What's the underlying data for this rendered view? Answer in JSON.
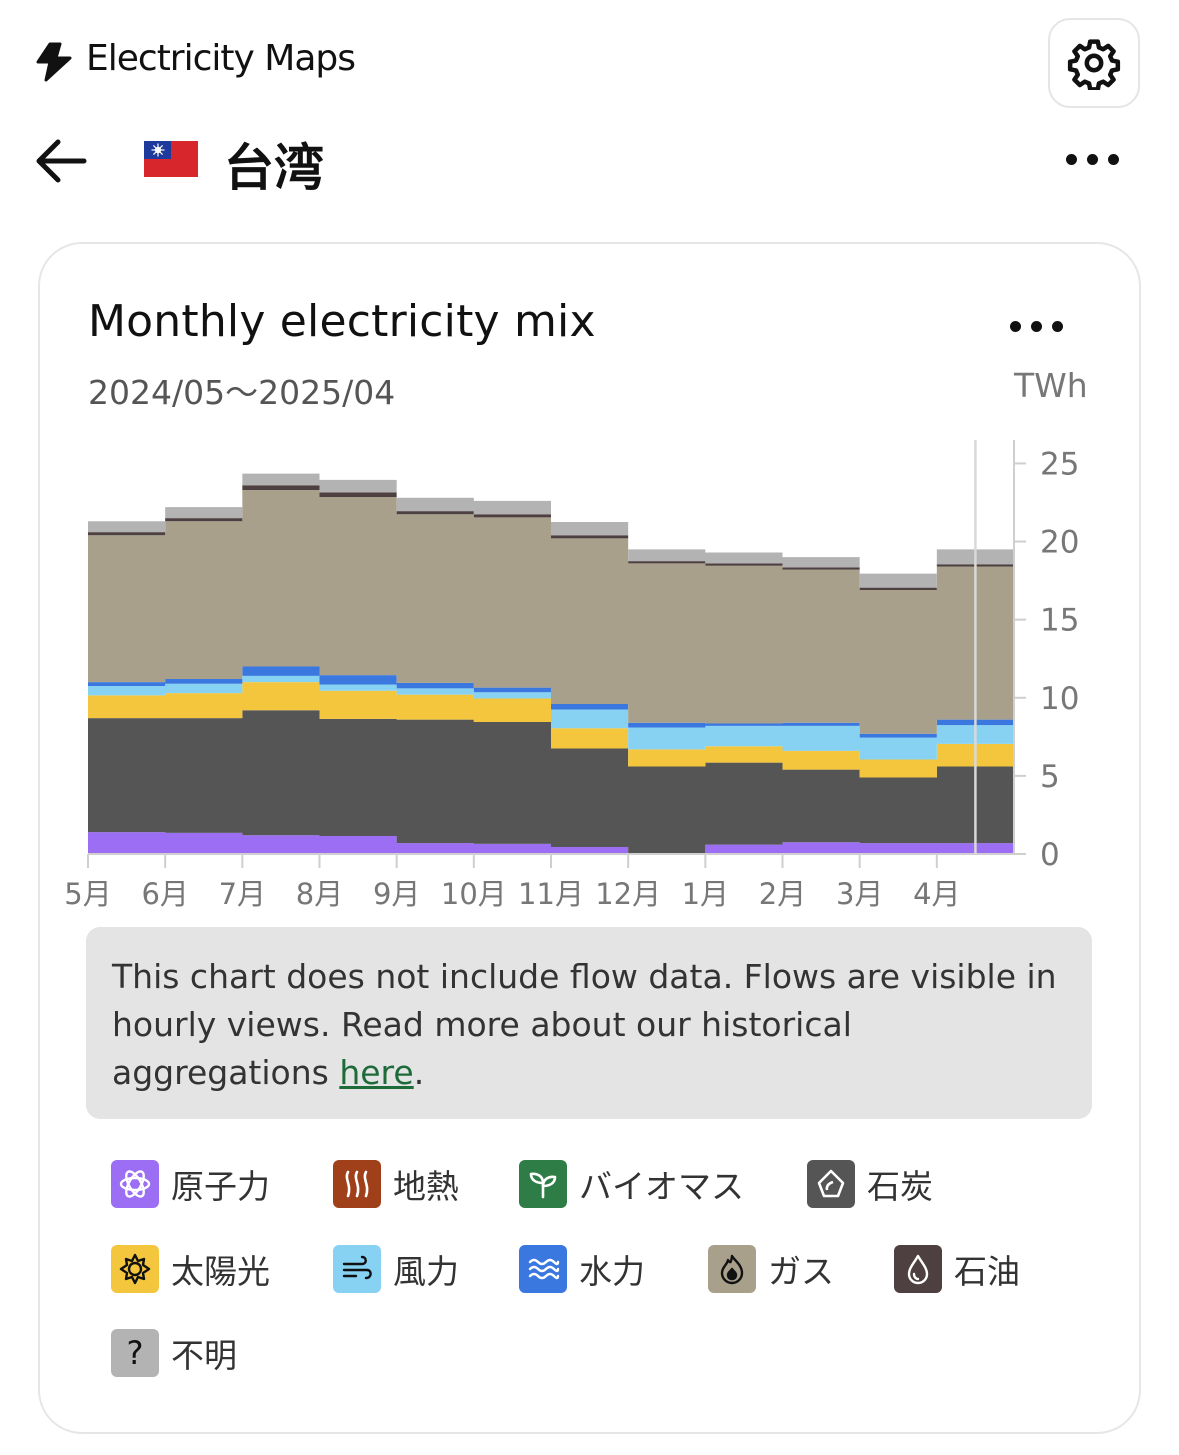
{
  "app": {
    "name": "Electricity Maps"
  },
  "zone": {
    "name": "台湾"
  },
  "card": {
    "title": "Monthly electricity mix",
    "date_range": "2024/05～2025/04",
    "unit": "TWh"
  },
  "notice": {
    "text": "This chart does not include flow data. Flows are visible in hourly views. Read more about our historical aggregations ",
    "link": "here",
    "suffix": "."
  },
  "legend": [
    {
      "label": "原子力",
      "color": "#9b6ef3",
      "icon": "atom-icon"
    },
    {
      "label": "地熱",
      "color": "#a0401b",
      "icon": "geothermal-icon"
    },
    {
      "label": "バイオマス",
      "color": "#2e7d46",
      "icon": "sprout-icon"
    },
    {
      "label": "石炭",
      "color": "#555555",
      "icon": "coal-icon"
    },
    {
      "label": "太陽光",
      "color": "#f4c63d",
      "icon": "sun-icon"
    },
    {
      "label": "風力",
      "color": "#87d1f2",
      "icon": "wind-icon"
    },
    {
      "label": "水力",
      "color": "#3a78e0",
      "icon": "water-icon"
    },
    {
      "label": "ガス",
      "color": "#a8a08b",
      "icon": "flame-icon"
    },
    {
      "label": "石油",
      "color": "#4e4040",
      "icon": "drop-icon"
    },
    {
      "label": "不明",
      "color": "#b3b3b3",
      "icon": "question-icon"
    }
  ],
  "chart_data": {
    "type": "area",
    "stacked": true,
    "categories": [
      "5月",
      "6月",
      "7月",
      "8月",
      "9月",
      "10月",
      "11月",
      "12月",
      "1月",
      "2月",
      "3月",
      "4月"
    ],
    "yticks": [
      0,
      5,
      10,
      15,
      20,
      25
    ],
    "ylim": [
      0,
      26.5
    ],
    "unit": "TWh",
    "grid": false,
    "series": [
      {
        "name": "原子力",
        "color": "#9b6ef3",
        "values": [
          1.4,
          1.35,
          1.2,
          1.15,
          0.7,
          0.65,
          0.45,
          0.0,
          0.6,
          0.75,
          0.7,
          0.7
        ]
      },
      {
        "name": "石炭",
        "color": "#555555",
        "values": [
          7.3,
          7.35,
          8.0,
          7.5,
          7.9,
          7.8,
          6.3,
          5.6,
          5.25,
          4.65,
          4.2,
          4.9
        ]
      },
      {
        "name": "太陽光",
        "color": "#f4c63d",
        "values": [
          1.45,
          1.6,
          1.8,
          1.8,
          1.6,
          1.5,
          1.3,
          1.1,
          1.05,
          1.2,
          1.15,
          1.45
        ]
      },
      {
        "name": "風力",
        "color": "#87d1f2",
        "values": [
          0.6,
          0.6,
          0.4,
          0.4,
          0.4,
          0.4,
          1.2,
          1.4,
          1.3,
          1.6,
          1.4,
          1.2
        ]
      },
      {
        "name": "水力",
        "color": "#3a78e0",
        "values": [
          0.25,
          0.3,
          0.6,
          0.6,
          0.35,
          0.3,
          0.35,
          0.3,
          0.15,
          0.2,
          0.25,
          0.35
        ]
      },
      {
        "name": "ガス",
        "color": "#a8a08b",
        "values": [
          9.4,
          10.1,
          11.3,
          11.4,
          10.8,
          10.9,
          10.6,
          10.2,
          10.1,
          9.8,
          9.2,
          9.8
        ]
      },
      {
        "name": "石油",
        "color": "#4e4040",
        "values": [
          0.2,
          0.2,
          0.3,
          0.3,
          0.2,
          0.2,
          0.2,
          0.15,
          0.15,
          0.15,
          0.15,
          0.15
        ]
      },
      {
        "name": "不明",
        "color": "#b3b3b3",
        "values": [
          0.7,
          0.7,
          0.75,
          0.8,
          0.85,
          0.85,
          0.85,
          0.75,
          0.7,
          0.65,
          0.9,
          0.95
        ]
      }
    ]
  }
}
